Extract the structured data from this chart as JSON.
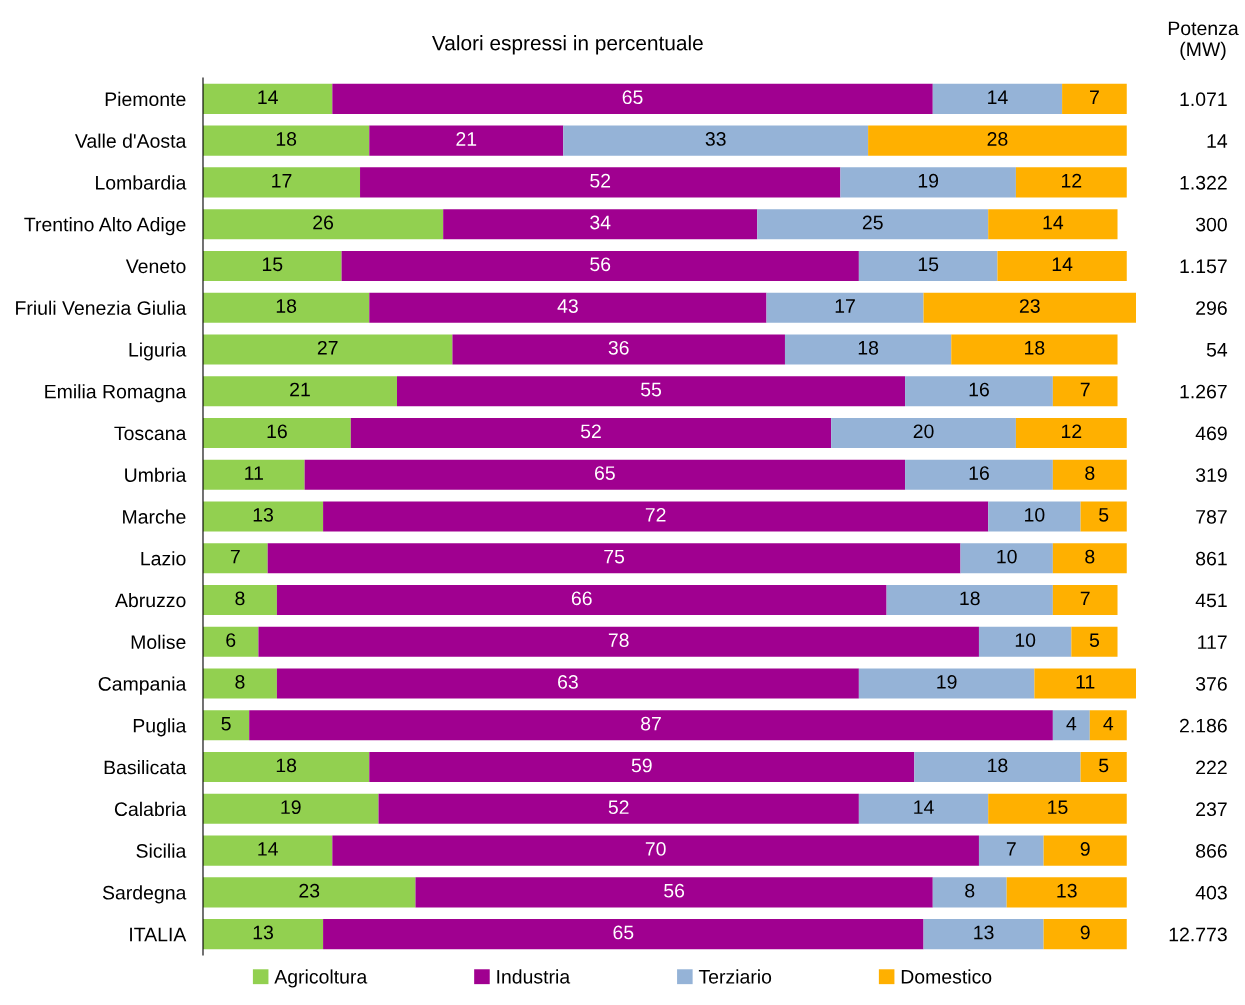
{
  "chart_data": {
    "type": "bar",
    "orientation": "horizontal",
    "stacked": true,
    "data_labels": true,
    "tick_labels": "y",
    "legend": "bottom",
    "title": "Valori espressi in percentuale",
    "y2label": "Potenza\n(MW)",
    "categories": [
      "Piemonte",
      "Valle d'Aosta",
      "Lombardia",
      "Trentino Alto Adige",
      "Veneto",
      "Friuli Venezia Giulia",
      "Liguria",
      "Emilia Romagna",
      "Toscana",
      "Umbria",
      "Marche",
      "Lazio",
      "Abruzzo",
      "Molise",
      "Campania",
      "Puglia",
      "Basilicata",
      "Calabria",
      "Sicilia",
      "Sardegna",
      "ITALIA"
    ],
    "y2_categories": [
      "1.071",
      "14",
      "1.322",
      "300",
      "1.157",
      "296",
      "54",
      "1.267",
      "469",
      "319",
      "787",
      "861",
      "451",
      "117",
      "376",
      "2.186",
      "222",
      "237",
      "866",
      "403",
      "12.773"
    ],
    "series": [
      {
        "name": "Agricoltura",
        "color": "#92d050",
        "values": [
          14,
          18,
          17,
          26,
          15,
          18,
          27,
          21,
          16,
          11,
          13,
          7,
          8,
          6,
          8,
          5,
          18,
          19,
          14,
          23,
          13
        ]
      },
      {
        "name": "Industria",
        "color": "#a00090",
        "values": [
          65,
          21,
          52,
          34,
          56,
          43,
          36,
          55,
          52,
          65,
          72,
          75,
          66,
          78,
          63,
          87,
          59,
          52,
          70,
          56,
          65
        ]
      },
      {
        "name": "Terziario",
        "color": "#95b3d7",
        "values": [
          14,
          33,
          19,
          25,
          15,
          17,
          18,
          16,
          20,
          16,
          10,
          10,
          18,
          10,
          19,
          4,
          18,
          14,
          7,
          8,
          13
        ]
      },
      {
        "name": "Domestico",
        "color": "#ffb000",
        "values": [
          7,
          28,
          12,
          14,
          14,
          23,
          18,
          7,
          12,
          8,
          5,
          8,
          7,
          5,
          11,
          4,
          5,
          15,
          9,
          13,
          9
        ]
      }
    ]
  }
}
